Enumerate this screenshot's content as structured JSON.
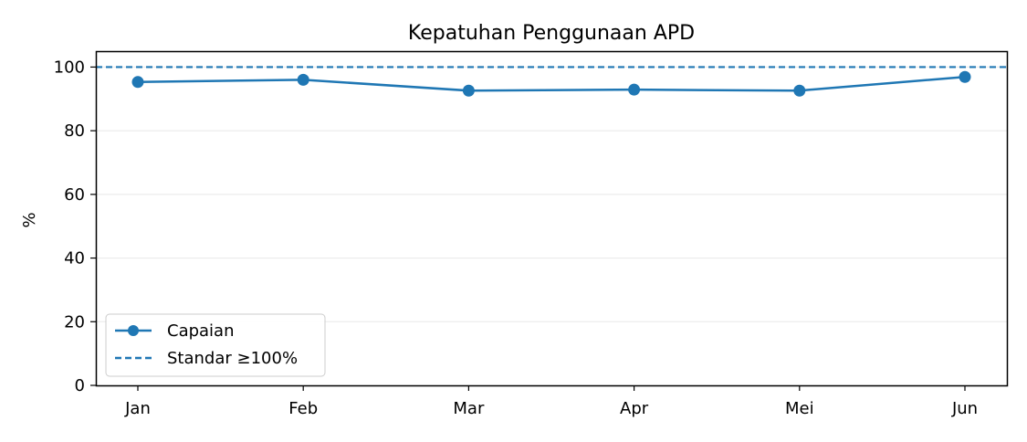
{
  "chart_data": {
    "type": "line",
    "title": "Kepatuhan Penggunaan APD",
    "xlabel": "",
    "ylabel": "%",
    "categories": [
      "Jan",
      "Feb",
      "Mar",
      "Apr",
      "Mei",
      "Jun"
    ],
    "series": [
      {
        "name": "Capaian",
        "values": [
          95.3,
          96.0,
          92.6,
          92.9,
          92.6,
          96.9
        ],
        "color": "#1f77b4",
        "marker": "circle"
      }
    ],
    "reference_lines": [
      {
        "name": "Standar ≥100%",
        "value": 100,
        "style": "dashed",
        "color": "#1f77b4"
      }
    ],
    "ylim": [
      0,
      105
    ],
    "yticks": [
      0,
      20,
      40,
      60,
      80,
      100
    ],
    "grid": "horizontal",
    "grid_color": "#e8e8e8",
    "legend_position": "lower-left"
  }
}
